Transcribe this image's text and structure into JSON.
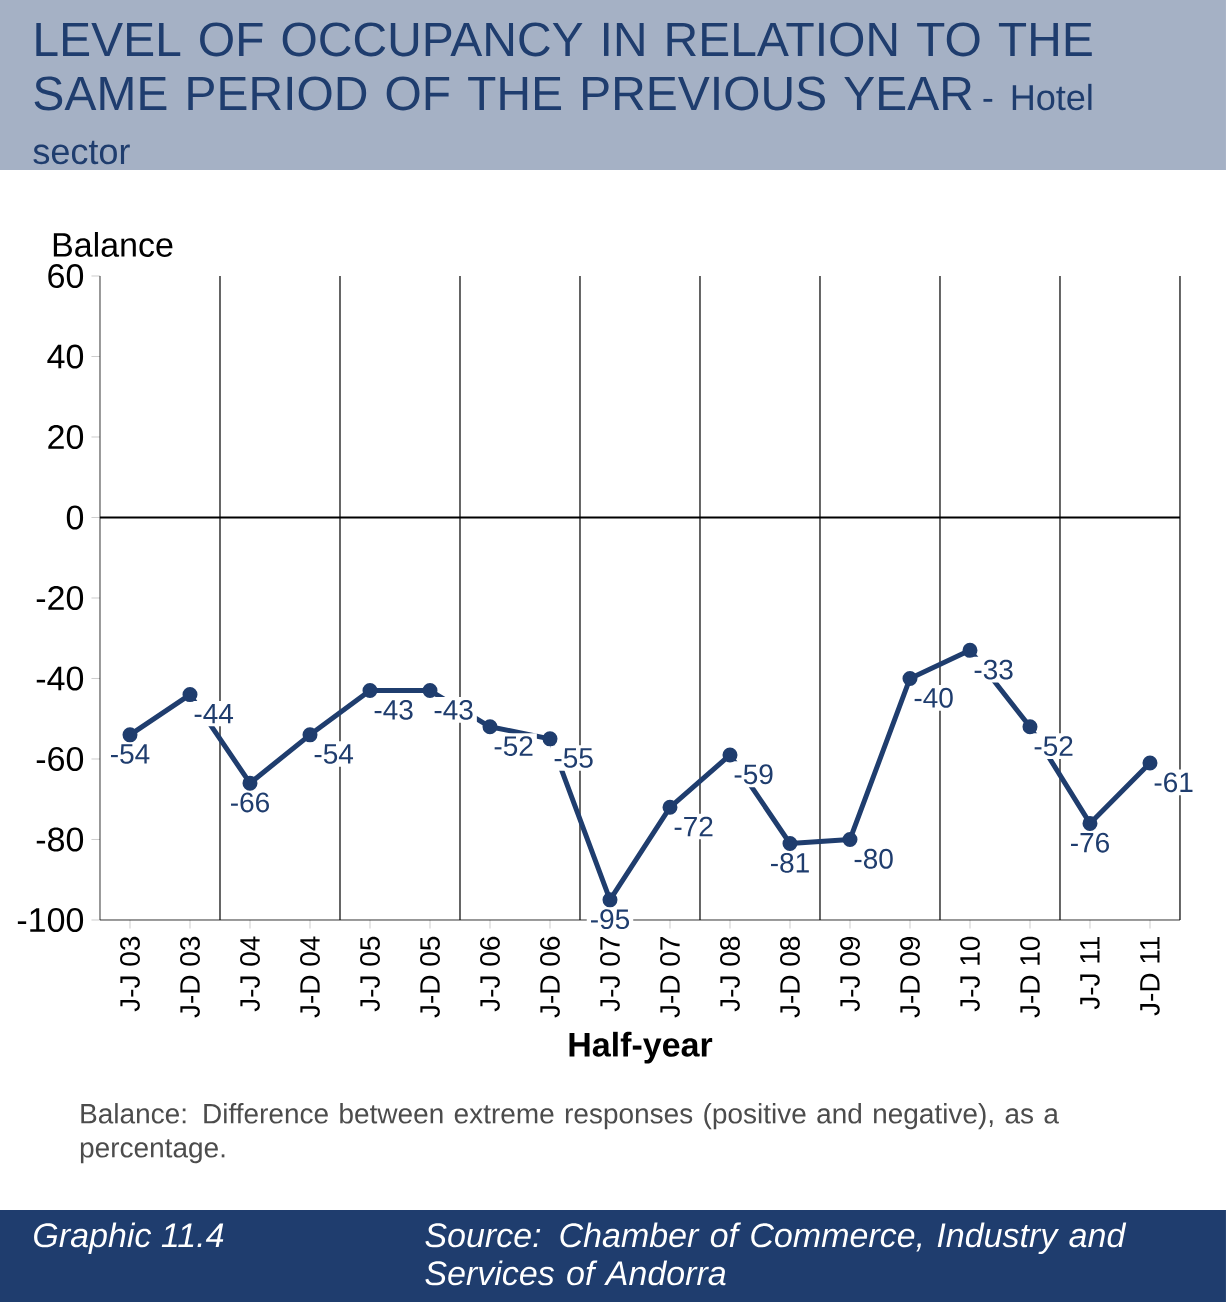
{
  "chart_data": {
    "type": "line",
    "title": "LEVEL OF OCCUPANCY IN RELATION TO THE SAME PERIOD OF THE PREVIOUS YEAR",
    "subtitle": "- Hotel sector",
    "ylabel": "Balance",
    "xlabel": "Half-year",
    "categories": [
      "J-J 03",
      "J-D 03",
      "J-J 04",
      "J-D 04",
      "J-J 05",
      "J-D 05",
      "J-J 06",
      "J-D 06",
      "J-J 07",
      "J-D 07",
      "J-J 08",
      "J-D 08",
      "J-J 09",
      "J-D 09",
      "J-J 10",
      "J-D 10",
      "J-J 11",
      "J-D 11"
    ],
    "values": [
      -54,
      -44,
      -66,
      -54,
      -43,
      -43,
      -52,
      -55,
      -95,
      -72,
      -59,
      -81,
      -80,
      -40,
      -33,
      -52,
      -76,
      -61
    ],
    "color": "#1f3d6e",
    "marker": "circle",
    "data_labels": true,
    "grid": "x",
    "ylim": [
      -100,
      60
    ],
    "yticks": [
      -100,
      -80,
      -60,
      -40,
      -20,
      0,
      20,
      40,
      60
    ],
    "ref_lines": [
      {
        "axis": "y",
        "value": 0,
        "color": "#000000"
      }
    ],
    "annotations": [
      "Balance: Difference between extreme responses (positive and negative), as a percentage.",
      "Graphic  11.4",
      "Source: Chamber of Commerce, Industry and Services of Andorra"
    ]
  }
}
